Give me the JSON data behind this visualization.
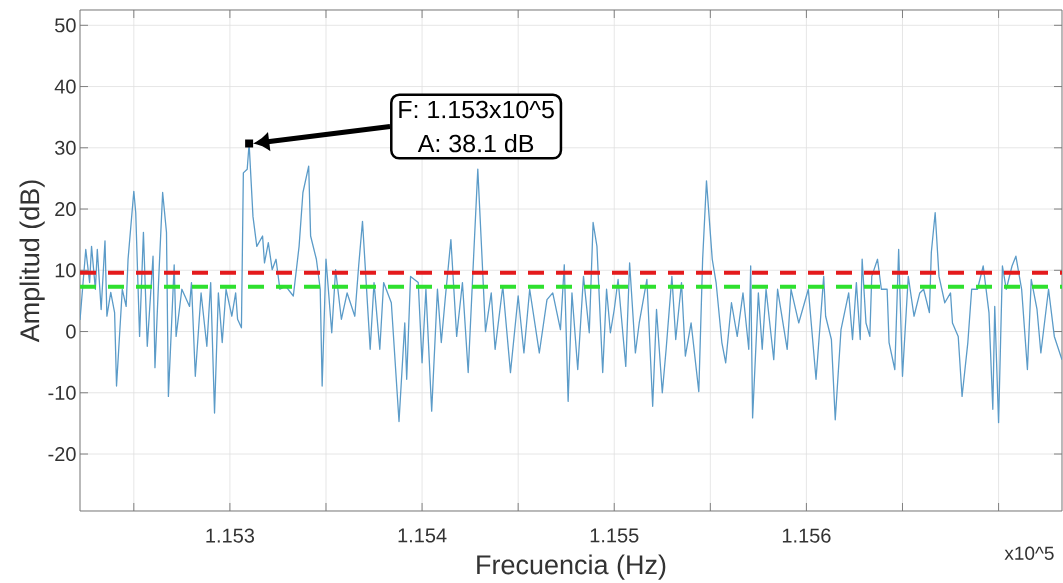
{
  "chart_data": {
    "type": "line",
    "xlabel": "Frecuencia (Hz)",
    "ylabel": "Amplitud (dB)",
    "color": "#5b9bc8",
    "marker": "none",
    "line_style": "solid",
    "grid": true,
    "xlim": [
      1.15222,
      1.15733
    ],
    "ylim": [
      -29.3,
      52.5
    ],
    "xticks": [
      {
        "value": 1.1525,
        "label": null
      },
      1.153,
      {
        "value": 1.1535,
        "label": null
      },
      1.154,
      {
        "value": 1.1545,
        "label": null
      },
      1.155,
      {
        "value": 1.1555,
        "label": null
      },
      1.156,
      {
        "value": 1.1565,
        "label": null
      },
      {
        "value": 1.157,
        "label": null
      }
    ],
    "yticks": [
      -20,
      -10,
      0,
      10,
      20,
      30,
      40,
      50
    ],
    "ref_lines": [
      {
        "axis": "y",
        "value": 9.6,
        "color": "#e41a1c",
        "line_style": "dashed"
      },
      {
        "axis": "y",
        "value": 7.3,
        "color": "#2ee02e",
        "line_style": "dashed"
      }
    ],
    "annotations": [
      "F: 1.153x10^5",
      "A: 38.1 dB",
      "x10^5"
    ],
    "x": [
      1.15222,
      1.15225,
      1.15227,
      1.15228,
      1.1523,
      1.15231,
      1.15233,
      1.15235,
      1.15236,
      1.15238,
      1.1524,
      1.15241,
      1.15244,
      1.15246,
      1.15247,
      1.1525,
      1.15251,
      1.15253,
      1.15255,
      1.15257,
      1.1526,
      1.15261,
      1.15263,
      1.15265,
      1.15267,
      1.15268,
      1.15271,
      1.15272,
      1.15275,
      1.15279,
      1.1528,
      1.15282,
      1.15285,
      1.15288,
      1.1529,
      1.15292,
      1.15294,
      1.15296,
      1.15298,
      1.15301,
      1.15303,
      1.15304,
      1.15306,
      1.15307,
      1.15309,
      1.1531,
      1.15312,
      1.15314,
      1.15317,
      1.15318,
      1.1532,
      1.15322,
      1.15324,
      1.15326,
      1.15329,
      1.15333,
      1.15336,
      1.15338,
      1.15341,
      1.15342,
      1.15345,
      1.15347,
      1.15348,
      1.1535,
      1.15353,
      1.15355,
      1.15358,
      1.15361,
      1.15365,
      1.15367,
      1.15369,
      1.15373,
      1.15375,
      1.15378,
      1.1538,
      1.15384,
      1.15388,
      1.15391,
      1.15392,
      1.15394,
      1.15398,
      1.154,
      1.15402,
      1.15405,
      1.15408,
      1.1541,
      1.15412,
      1.15415,
      1.15418,
      1.15421,
      1.15424,
      1.15427,
      1.15429,
      1.15431,
      1.15433,
      1.15436,
      1.15438,
      1.15442,
      1.15446,
      1.1545,
      1.15453,
      1.15456,
      1.15461,
      1.15465,
      1.15468,
      1.15472,
      1.15474,
      1.15476,
      1.15478,
      1.15481,
      1.15484,
      1.15487,
      1.15489,
      1.15491,
      1.15494,
      1.15496,
      1.15498,
      1.155,
      1.15502,
      1.15506,
      1.15508,
      1.15511,
      1.15513,
      1.15517,
      1.1552,
      1.15522,
      1.15525,
      1.15527,
      1.1553,
      1.15532,
      1.15535,
      1.15537,
      1.1554,
      1.15544,
      1.15546,
      1.15548,
      1.15551,
      1.15553,
      1.15556,
      1.15558,
      1.15561,
      1.15564,
      1.15567,
      1.1557,
      1.15571,
      1.15572,
      1.15575,
      1.15577,
      1.15579,
      1.15583,
      1.15585,
      1.1559,
      1.15592,
      1.15596,
      1.15601,
      1.15605,
      1.15609,
      1.1561,
      1.15613,
      1.15615,
      1.15618,
      1.15622,
      1.15624,
      1.15626,
      1.15628,
      1.15629,
      1.15631,
      1.15633,
      1.15634,
      1.15637,
      1.15639,
      1.15642,
      1.15643,
      1.15646,
      1.15648,
      1.1565,
      1.15653,
      1.15656,
      1.15659,
      1.15661,
      1.15664,
      1.15665,
      1.15667,
      1.15669,
      1.15672,
      1.15675,
      1.15676,
      1.15679,
      1.15681,
      1.15684,
      1.15686,
      1.15689,
      1.15692,
      1.15695,
      1.15697,
      1.15698,
      1.157,
      1.15702,
      1.15704,
      1.15707,
      1.15709,
      1.15712,
      1.15715,
      1.15717,
      1.1572,
      1.15722,
      1.15726,
      1.15729,
      1.15733
    ],
    "values": [
      1.9,
      13.4,
      8.0,
      13.9,
      6.9,
      13.4,
      3.6,
      14.8,
      2.5,
      6.4,
      3.1,
      -8.9,
      6.9,
      4.1,
      11.8,
      22.9,
      19.4,
      -0.8,
      16.2,
      -2.4,
      12.3,
      -5.9,
      9.0,
      22.7,
      16.2,
      -10.6,
      10.9,
      -0.8,
      6.9,
      4.1,
      8.0,
      -7.3,
      6.3,
      -2.4,
      8.0,
      -13.3,
      6.3,
      -1.8,
      6.9,
      2.5,
      6.3,
      2.0,
      0.6,
      25.9,
      26.5,
      30.7,
      18.8,
      13.9,
      15.6,
      11.2,
      14.5,
      10.1,
      11.8,
      6.9,
      7.4,
      5.8,
      13.9,
      22.7,
      27.0,
      15.6,
      11.8,
      6.9,
      -8.9,
      11.8,
      -0.2,
      10.1,
      2.0,
      6.3,
      2.5,
      10.7,
      18.0,
      -2.9,
      8.0,
      -2.9,
      8.0,
      4.7,
      -14.7,
      1.4,
      -7.8,
      9.0,
      8.0,
      -5.1,
      6.9,
      -13.0,
      6.9,
      -1.8,
      5.2,
      15.0,
      -0.8,
      8.0,
      -6.7,
      13.4,
      26.5,
      13.4,
      0.0,
      6.3,
      -2.9,
      7.4,
      -6.7,
      5.8,
      -3.5,
      6.9,
      -3.5,
      5.2,
      6.3,
      0.3,
      10.9,
      -11.4,
      6.3,
      -6.2,
      9.0,
      -0.2,
      17.8,
      13.9,
      -6.7,
      6.9,
      -0.2,
      3.6,
      8.5,
      -5.7,
      11.2,
      -3.5,
      1.4,
      8.5,
      -12.2,
      3.6,
      -10.0,
      -2.9,
      9.0,
      -1.3,
      8.0,
      -4.0,
      1.4,
      -9.8,
      11.8,
      24.6,
      11.8,
      8.0,
      -1.8,
      -5.1,
      4.7,
      -0.8,
      6.3,
      -2.9,
      10.7,
      -14.1,
      6.3,
      -2.9,
      6.9,
      -4.6,
      6.9,
      -2.9,
      6.9,
      1.4,
      6.9,
      -7.8,
      9.0,
      2.5,
      -1.3,
      -14.4,
      0.3,
      6.3,
      -1.3,
      8.0,
      -1.3,
      11.8,
      1.4,
      -0.8,
      9.0,
      11.8,
      6.9,
      6.9,
      -1.8,
      -6.2,
      13.4,
      -7.3,
      9.0,
      2.5,
      6.3,
      6.9,
      3.1,
      12.9,
      19.4,
      9.0,
      4.7,
      6.3,
      1.4,
      -0.8,
      -10.6,
      -1.8,
      6.9,
      6.9,
      10.7,
      3.1,
      -12.7,
      4.1,
      -14.9,
      10.7,
      6.9,
      10.7,
      12.3,
      6.9,
      -6.2,
      8.5,
      3.6,
      -3.5,
      6.9,
      -0.8,
      -4.6
    ]
  }
}
